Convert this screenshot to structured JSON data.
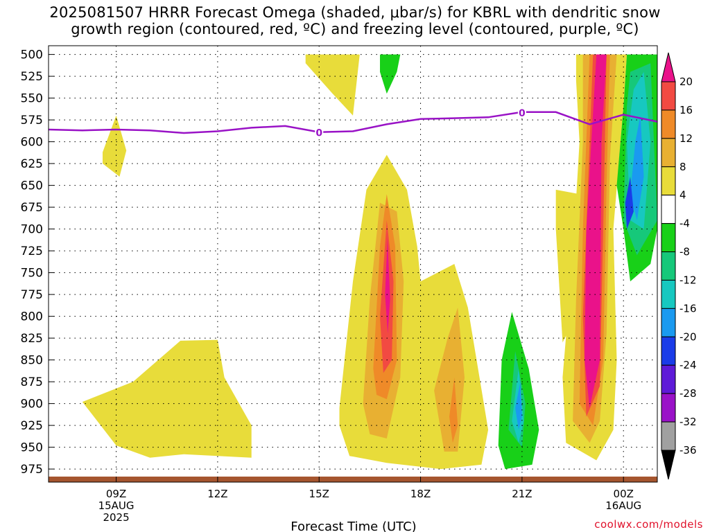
{
  "chart_data": {
    "type": "heatmap",
    "title_line1": "2025081507 HRRR Forecast Omega (shaded, μbar/s) for KBRL with dendritic snow",
    "title_line2": "growth region (contoured, red, ºC) and freezing level (contoured, purple, ºC)",
    "xlabel": "Forecast Time (UTC)",
    "x_ticks": [
      {
        "hour": 9,
        "label": "09Z",
        "sub1": "15AUG",
        "sub2": "2025"
      },
      {
        "hour": 12,
        "label": "12Z",
        "sub1": "",
        "sub2": ""
      },
      {
        "hour": 15,
        "label": "15Z",
        "sub1": "",
        "sub2": ""
      },
      {
        "hour": 18,
        "label": "18Z",
        "sub1": "",
        "sub2": ""
      },
      {
        "hour": 21,
        "label": "21Z",
        "sub1": "",
        "sub2": ""
      },
      {
        "hour": 24,
        "label": "00Z",
        "sub1": "16AUG",
        "sub2": ""
      }
    ],
    "xlim": [
      7,
      25
    ],
    "y_ticks": [
      500,
      525,
      550,
      575,
      600,
      625,
      650,
      675,
      700,
      725,
      750,
      775,
      800,
      825,
      850,
      875,
      900,
      925,
      950,
      975
    ],
    "ylim": [
      490,
      990
    ],
    "grid": true,
    "colorbar": {
      "levels": [
        "-36",
        "-32",
        "-28",
        "-24",
        "-20",
        "-16",
        "-12",
        "-8",
        "-4",
        "4",
        "8",
        "12",
        "16",
        "20"
      ],
      "colors": [
        "#000000",
        "#a0a0a0",
        "#9a12c8",
        "#5e1ad8",
        "#1a3ce8",
        "#1a9af0",
        "#17c8c0",
        "#16c87a",
        "#18d018",
        "#ffffff",
        "#e8dc3a",
        "#e8b032",
        "#ef8a28",
        "#f24a42",
        "#ea128a"
      ]
    },
    "freezing_level": {
      "label": "0",
      "points": [
        [
          7,
          586
        ],
        [
          8,
          587
        ],
        [
          9,
          586
        ],
        [
          10,
          587
        ],
        [
          11,
          590
        ],
        [
          12,
          588
        ],
        [
          13,
          584
        ],
        [
          14,
          582
        ],
        [
          15,
          589
        ],
        [
          16,
          588
        ],
        [
          17,
          580
        ],
        [
          18,
          574
        ],
        [
          19,
          573
        ],
        [
          20,
          572
        ],
        [
          21,
          566
        ],
        [
          22,
          566
        ],
        [
          23,
          580
        ],
        [
          24,
          569
        ],
        [
          25,
          577
        ]
      ],
      "label_hours": [
        15,
        21
      ]
    },
    "omega_regions": [
      {
        "level": "4",
        "points": [
          [
            14.6,
            500
          ],
          [
            16.2,
            500
          ],
          [
            16.0,
            570
          ],
          [
            15.4,
            545
          ],
          [
            14.6,
            510
          ]
        ]
      },
      {
        "level": "-4",
        "points": [
          [
            16.8,
            500
          ],
          [
            17.4,
            500
          ],
          [
            17.3,
            520
          ],
          [
            17.0,
            545
          ],
          [
            16.8,
            520
          ]
        ]
      },
      {
        "level": "4",
        "points": [
          [
            8.6,
            612
          ],
          [
            9.0,
            570
          ],
          [
            9.3,
            610
          ],
          [
            9.1,
            640
          ],
          [
            8.6,
            625
          ]
        ]
      },
      {
        "level": "4",
        "points": [
          [
            8.0,
            898
          ],
          [
            9.5,
            875
          ],
          [
            10.9,
            828
          ],
          [
            12.0,
            827
          ],
          [
            12.2,
            870
          ],
          [
            13.0,
            925
          ],
          [
            13.0,
            962
          ],
          [
            11.0,
            958
          ],
          [
            10.0,
            962
          ],
          [
            9.0,
            948
          ],
          [
            8.0,
            898
          ]
        ]
      },
      {
        "level": "4",
        "points": [
          [
            15.6,
            905
          ],
          [
            16.0,
            760
          ],
          [
            16.4,
            655
          ],
          [
            17.0,
            615
          ],
          [
            17.6,
            655
          ],
          [
            17.9,
            720
          ],
          [
            18.0,
            760
          ],
          [
            19.0,
            740
          ],
          [
            19.4,
            790
          ],
          [
            20.0,
            930
          ],
          [
            19.8,
            970
          ],
          [
            18.6,
            975
          ],
          [
            17.0,
            968
          ],
          [
            15.9,
            960
          ],
          [
            15.6,
            925
          ]
        ]
      },
      {
        "level": "8",
        "points": [
          [
            16.3,
            900
          ],
          [
            16.5,
            780
          ],
          [
            16.8,
            670
          ],
          [
            17.3,
            680
          ],
          [
            17.5,
            760
          ],
          [
            17.4,
            870
          ],
          [
            17.0,
            940
          ],
          [
            16.5,
            935
          ]
        ]
      },
      {
        "level": "8",
        "points": [
          [
            18.4,
            885
          ],
          [
            18.8,
            825
          ],
          [
            19.1,
            790
          ],
          [
            19.3,
            870
          ],
          [
            19.1,
            955
          ],
          [
            18.7,
            955
          ]
        ]
      },
      {
        "level": "12",
        "points": [
          [
            16.6,
            860
          ],
          [
            16.8,
            720
          ],
          [
            17.0,
            660
          ],
          [
            17.25,
            720
          ],
          [
            17.3,
            850
          ],
          [
            17.0,
            895
          ],
          [
            16.7,
            890
          ]
        ]
      },
      {
        "level": "16",
        "points": [
          [
            16.8,
            800
          ],
          [
            17.0,
            690
          ],
          [
            17.2,
            760
          ],
          [
            17.15,
            850
          ],
          [
            16.9,
            865
          ]
        ]
      },
      {
        "level": "20",
        "points": [
          [
            16.95,
            775
          ],
          [
            17.02,
            710
          ],
          [
            17.1,
            780
          ],
          [
            17.03,
            820
          ]
        ]
      },
      {
        "level": "12",
        "points": [
          [
            18.85,
            915
          ],
          [
            19.0,
            870
          ],
          [
            19.1,
            925
          ],
          [
            18.95,
            945
          ]
        ]
      },
      {
        "level": "4",
        "points": [
          [
            22.0,
            655
          ],
          [
            22.7,
            660
          ],
          [
            23.0,
            740
          ],
          [
            22.6,
            800
          ],
          [
            22.2,
            830
          ],
          [
            22.0,
            700
          ]
        ]
      },
      {
        "level": "4",
        "points": [
          [
            22.6,
            500
          ],
          [
            24.1,
            500
          ],
          [
            24.0,
            560
          ],
          [
            23.7,
            700
          ],
          [
            23.8,
            850
          ],
          [
            23.7,
            930
          ],
          [
            23.2,
            965
          ],
          [
            22.3,
            945
          ],
          [
            22.2,
            870
          ],
          [
            22.5,
            730
          ],
          [
            22.7,
            600
          ],
          [
            22.6,
            530
          ]
        ]
      },
      {
        "level": "8",
        "points": [
          [
            22.8,
            500
          ],
          [
            23.8,
            500
          ],
          [
            23.6,
            620
          ],
          [
            23.5,
            820
          ],
          [
            23.3,
            920
          ],
          [
            23.0,
            945
          ],
          [
            22.5,
            920
          ],
          [
            22.6,
            780
          ],
          [
            22.8,
            600
          ]
        ]
      },
      {
        "level": "12",
        "points": [
          [
            23.0,
            500
          ],
          [
            23.6,
            500
          ],
          [
            23.5,
            650
          ],
          [
            23.4,
            850
          ],
          [
            23.1,
            925
          ],
          [
            22.7,
            900
          ],
          [
            22.8,
            700
          ]
        ]
      },
      {
        "level": "16",
        "points": [
          [
            23.1,
            500
          ],
          [
            23.5,
            500
          ],
          [
            23.4,
            700
          ],
          [
            23.3,
            880
          ],
          [
            22.9,
            915
          ],
          [
            22.8,
            800
          ]
        ]
      },
      {
        "level": "20",
        "points": [
          [
            23.2,
            500
          ],
          [
            23.5,
            500
          ],
          [
            23.35,
            600
          ],
          [
            23.3,
            850
          ],
          [
            23.0,
            905
          ],
          [
            22.85,
            850
          ],
          [
            22.9,
            700
          ]
        ]
      },
      {
        "level": "-4",
        "points": [
          [
            24.1,
            500
          ],
          [
            25.0,
            500
          ],
          [
            25.0,
            700
          ],
          [
            24.8,
            740
          ],
          [
            24.2,
            760
          ],
          [
            24.0,
            700
          ],
          [
            23.8,
            650
          ],
          [
            24.0,
            560
          ]
        ]
      },
      {
        "level": "-8",
        "points": [
          [
            24.2,
            520
          ],
          [
            24.8,
            510
          ],
          [
            25.0,
            690
          ],
          [
            24.4,
            730
          ],
          [
            24.0,
            690
          ],
          [
            24.1,
            560
          ]
        ]
      },
      {
        "level": "-12",
        "points": [
          [
            24.3,
            540
          ],
          [
            24.6,
            520
          ],
          [
            24.8,
            600
          ],
          [
            24.6,
            700
          ],
          [
            24.2,
            690
          ],
          [
            24.1,
            600
          ]
        ]
      },
      {
        "level": "-16",
        "points": [
          [
            24.35,
            600
          ],
          [
            24.5,
            570
          ],
          [
            24.6,
            640
          ],
          [
            24.4,
            690
          ],
          [
            24.2,
            660
          ]
        ]
      },
      {
        "level": "-20",
        "points": [
          [
            24.05,
            670
          ],
          [
            24.2,
            640
          ],
          [
            24.3,
            680
          ],
          [
            24.1,
            700
          ]
        ]
      },
      {
        "level": "-4",
        "points": [
          [
            20.3,
            948
          ],
          [
            20.4,
            850
          ],
          [
            20.7,
            795
          ],
          [
            21.2,
            860
          ],
          [
            21.5,
            930
          ],
          [
            21.3,
            970
          ],
          [
            20.5,
            975
          ]
        ]
      },
      {
        "level": "-8",
        "points": [
          [
            20.6,
            930
          ],
          [
            20.8,
            840
          ],
          [
            21.1,
            900
          ],
          [
            21.0,
            950
          ]
        ]
      },
      {
        "level": "-12",
        "points": [
          [
            20.7,
            920
          ],
          [
            20.9,
            860
          ],
          [
            21.05,
            920
          ],
          [
            20.9,
            945
          ]
        ]
      },
      {
        "level": "-16",
        "points": [
          [
            20.8,
            905
          ],
          [
            20.95,
            875
          ],
          [
            21.0,
            915
          ],
          [
            20.9,
            930
          ]
        ]
      }
    ]
  },
  "credit": "coolwx.com/models"
}
